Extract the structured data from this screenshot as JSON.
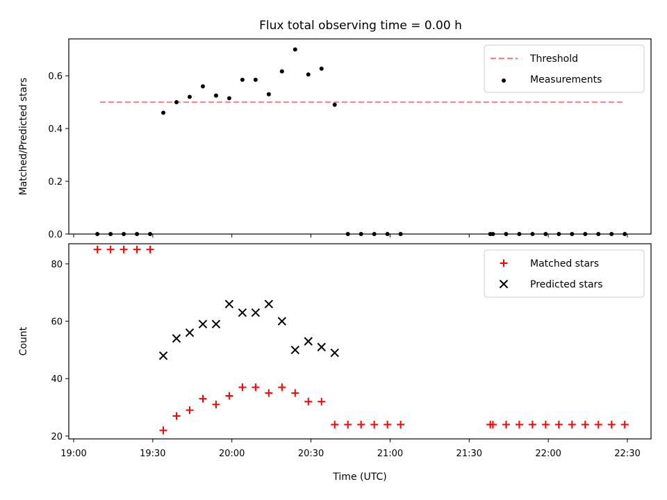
{
  "chart_data": [
    {
      "type": "scatter",
      "title": "Flux total observing time = 0.00 h",
      "xlabel": "",
      "ylabel": "Matched/Predicted stars",
      "xlim": [
        "19:00",
        "22:30"
      ],
      "ylim": [
        0,
        0.74
      ],
      "yticks": [
        0.0,
        0.2,
        0.4,
        0.6
      ],
      "ytick_labels": [
        "0.0",
        "0.2",
        "0.4",
        "0.6"
      ],
      "legend": "top-right",
      "series": [
        {
          "name": "Threshold",
          "kind": "line",
          "style": "dashed",
          "color": "#ff7f7f",
          "x": [
            "19:10",
            "22:29"
          ],
          "y": [
            0.5,
            0.5
          ]
        },
        {
          "name": "Measurements",
          "kind": "points",
          "marker": "dot",
          "color": "#000000",
          "x": [
            "19:09",
            "19:14",
            "19:19",
            "19:24",
            "19:29",
            "19:34",
            "19:39",
            "19:44",
            "19:49",
            "19:54",
            "19:59",
            "20:04",
            "20:09",
            "20:14",
            "20:19",
            "20:24",
            "20:29",
            "20:34",
            "20:39",
            "20:44",
            "20:49",
            "20:54",
            "20:59",
            "21:04",
            "21:38",
            "21:39",
            "21:44",
            "21:49",
            "21:54",
            "21:59",
            "22:04",
            "22:09",
            "22:14",
            "22:19",
            "22:24",
            "22:29"
          ],
          "y": [
            0,
            0,
            0,
            0,
            0,
            0.46,
            0.5,
            0.52,
            0.56,
            0.525,
            0.515,
            0.585,
            0.585,
            0.53,
            0.617,
            0.7,
            0.605,
            0.627,
            0.49,
            0,
            0,
            0,
            0,
            0,
            0,
            0,
            0,
            0,
            0,
            0,
            0,
            0,
            0,
            0,
            0,
            0
          ]
        }
      ]
    },
    {
      "type": "scatter",
      "xlabel": "Time (UTC)",
      "ylabel": "Count",
      "xlim": [
        "19:00",
        "22:30"
      ],
      "ylim": [
        19,
        87
      ],
      "xticks": [
        "19:00",
        "19:30",
        "20:00",
        "20:30",
        "21:00",
        "21:30",
        "22:00",
        "22:30"
      ],
      "yticks": [
        20,
        40,
        60,
        80
      ],
      "ytick_labels": [
        "20",
        "40",
        "60",
        "80"
      ],
      "legend": "top-right",
      "series": [
        {
          "name": "Matched stars",
          "marker": "plus",
          "color": "#ff0000",
          "x": [
            "19:09",
            "19:14",
            "19:19",
            "19:24",
            "19:29",
            "19:34",
            "19:39",
            "19:44",
            "19:49",
            "19:54",
            "19:59",
            "20:04",
            "20:09",
            "20:14",
            "20:19",
            "20:24",
            "20:29",
            "20:34",
            "20:39",
            "20:44",
            "20:49",
            "20:54",
            "20:59",
            "21:04",
            "21:38",
            "21:39",
            "21:44",
            "21:49",
            "21:54",
            "21:59",
            "22:04",
            "22:09",
            "22:14",
            "22:19",
            "22:24",
            "22:29"
          ],
          "y": [
            85,
            85,
            85,
            85,
            85,
            22,
            27,
            29,
            33,
            31,
            34,
            37,
            37,
            35,
            37,
            35,
            32,
            32,
            24,
            24,
            24,
            24,
            24,
            24,
            24,
            24,
            24,
            24,
            24,
            24,
            24,
            24,
            24,
            24,
            24,
            24
          ]
        },
        {
          "name": "Predicted stars",
          "marker": "x",
          "color": "#000000",
          "x": [
            "19:34",
            "19:39",
            "19:44",
            "19:49",
            "19:54",
            "19:59",
            "20:04",
            "20:09",
            "20:14",
            "20:19",
            "20:24",
            "20:29",
            "20:34",
            "20:39"
          ],
          "y": [
            48,
            54,
            56,
            59,
            59,
            66,
            63,
            63,
            66,
            60,
            50,
            53,
            51,
            49
          ]
        }
      ]
    }
  ]
}
